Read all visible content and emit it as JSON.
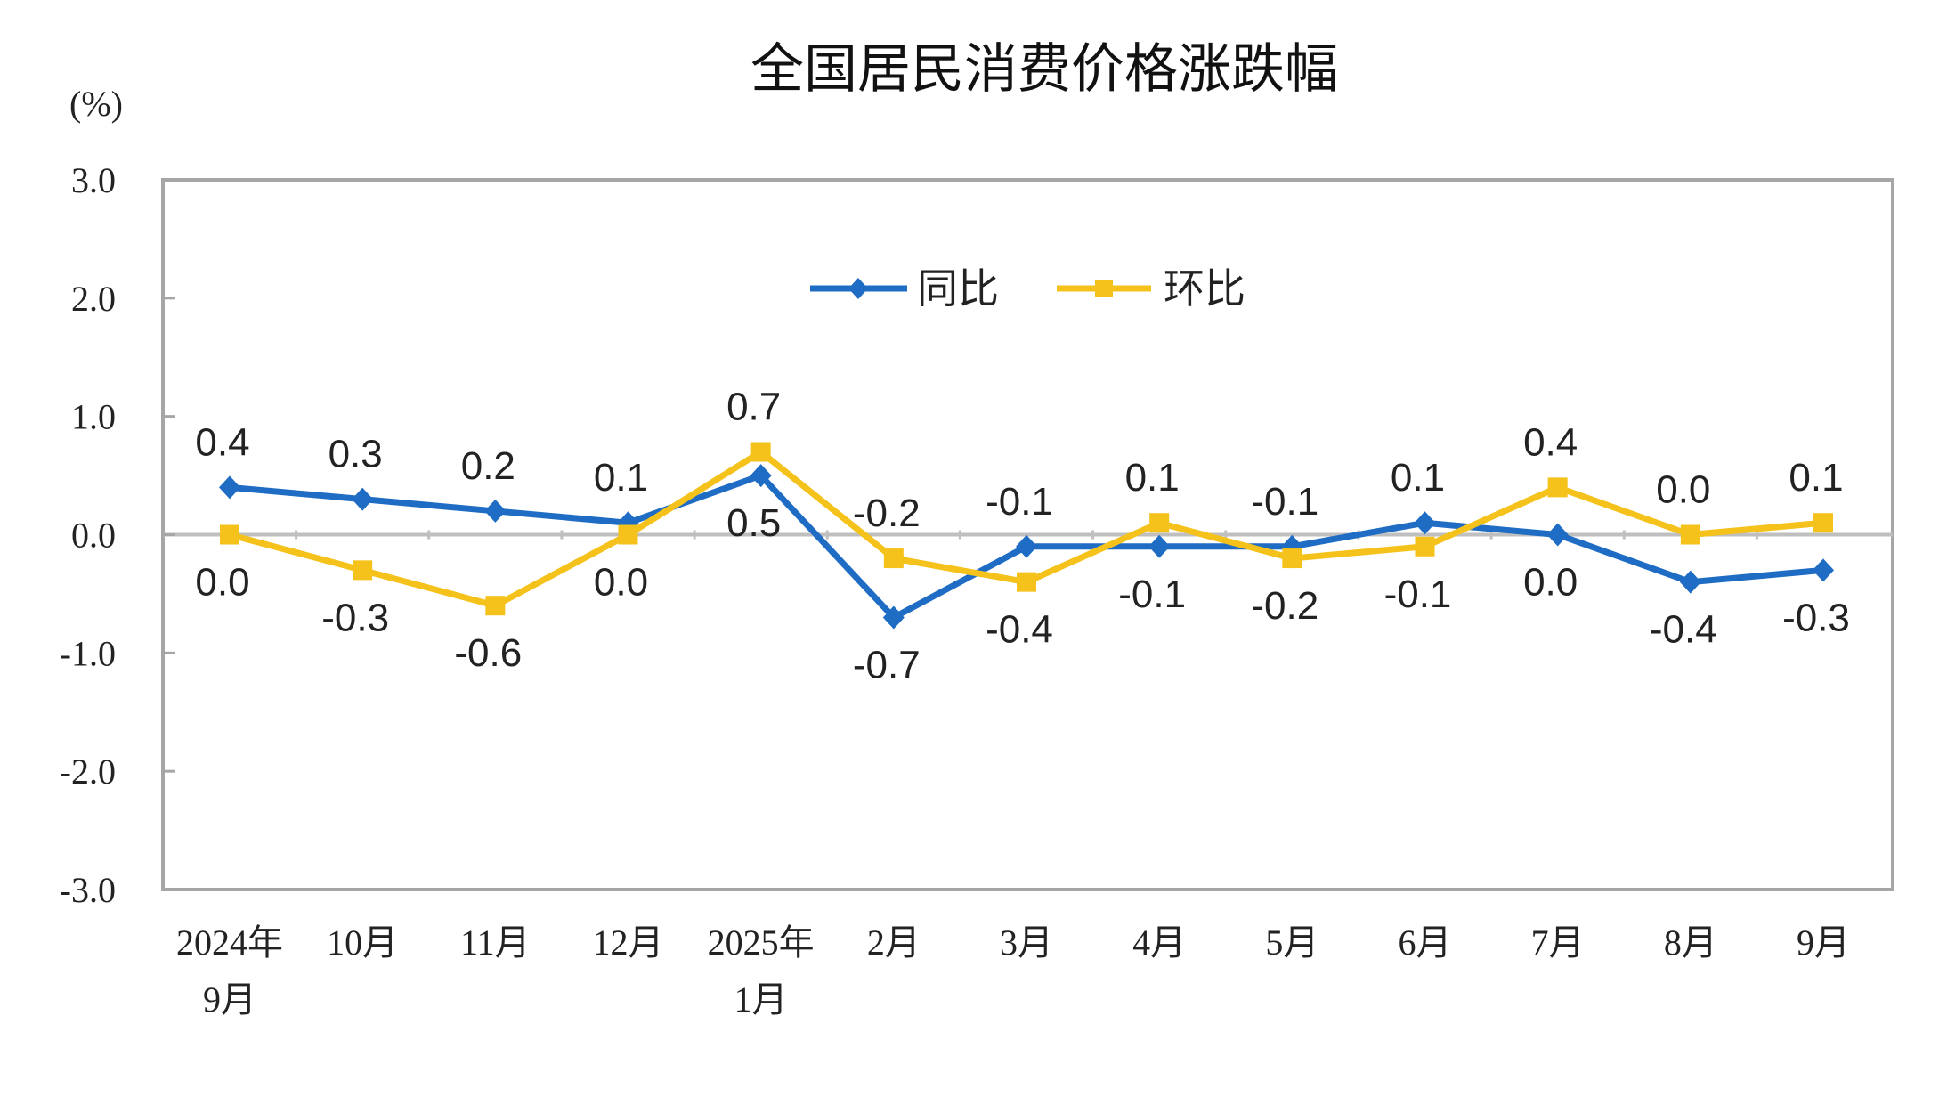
{
  "chart_data": {
    "type": "line",
    "title": "全国居民消费价格涨跌幅",
    "ylabel": "(%)",
    "ylim": [
      -3.0,
      3.0
    ],
    "yticks": [
      "3.0",
      "2.0",
      "1.0",
      "0.0",
      "-1.0",
      "-2.0",
      "-3.0"
    ],
    "categories": [
      [
        "2024年",
        "9月"
      ],
      [
        "10月"
      ],
      [
        "11月"
      ],
      [
        "12月"
      ],
      [
        "2025年",
        "1月"
      ],
      [
        "2月"
      ],
      [
        "3月"
      ],
      [
        "4月"
      ],
      [
        "5月"
      ],
      [
        "6月"
      ],
      [
        "7月"
      ],
      [
        "8月"
      ],
      [
        "9月"
      ]
    ],
    "legend_position": "top-center",
    "grid": false,
    "series": [
      {
        "name": "同比",
        "color": "#1f6cc4",
        "marker": "diamond",
        "values": [
          0.4,
          0.3,
          0.2,
          0.1,
          0.5,
          -0.7,
          -0.1,
          -0.1,
          -0.1,
          0.1,
          0.0,
          -0.4,
          -0.3
        ],
        "labels": [
          "0.4",
          "0.3",
          "0.2",
          "0.1",
          "0.5",
          "-0.7",
          "-0.1",
          "-0.1",
          "-0.1",
          "0.1",
          "0.0",
          "-0.4",
          "-0.3"
        ]
      },
      {
        "name": "环比",
        "color": "#f4c21a",
        "marker": "square",
        "values": [
          0.0,
          -0.3,
          -0.6,
          0.0,
          0.7,
          -0.2,
          -0.4,
          0.1,
          -0.2,
          -0.1,
          0.4,
          0.0,
          0.1
        ],
        "labels": [
          "0.0",
          "-0.3",
          "-0.6",
          "0.0",
          "0.7",
          "-0.2",
          "-0.4",
          "0.1",
          "-0.2",
          "-0.1",
          "0.4",
          "0.0",
          "0.1"
        ]
      }
    ]
  }
}
